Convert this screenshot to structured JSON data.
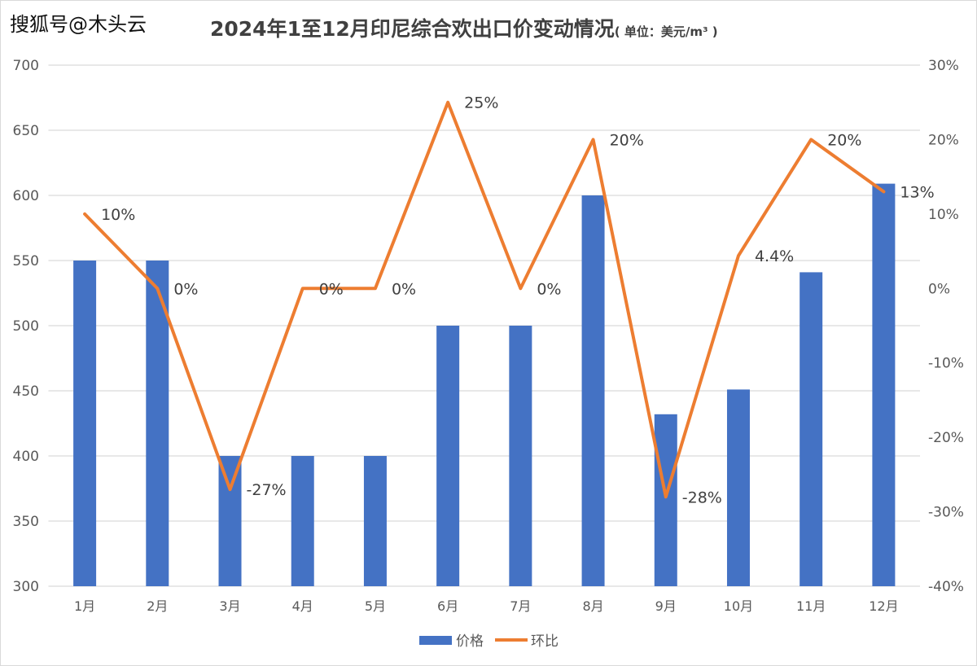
{
  "watermark": "搜狐号@木头云",
  "chart_data": {
    "type": "bar+line",
    "title": "2024年1至12月印尼综合欢出口价变动情况",
    "subtitle": "( 单位：美元/m³ )",
    "categories": [
      "1月",
      "2月",
      "3月",
      "4月",
      "5月",
      "6月",
      "7月",
      "8月",
      "9月",
      "10月",
      "11月",
      "12月"
    ],
    "series": [
      {
        "name": "价格",
        "type": "bar",
        "axis": "left",
        "color": "#4472C4",
        "values": [
          550,
          550,
          400,
          400,
          400,
          500,
          500,
          600,
          432,
          451,
          541,
          609
        ]
      },
      {
        "name": "环比",
        "type": "line",
        "axis": "right",
        "color": "#ED7D31",
        "values": [
          10,
          0,
          -27,
          0,
          0,
          25,
          0,
          20,
          -28,
          4.4,
          20,
          13
        ],
        "labels": [
          "10%",
          "0%",
          "-27%",
          "0%",
          "0%",
          "25%",
          "0%",
          "20%",
          "-28%",
          "4.4%",
          "20%",
          "13%"
        ]
      }
    ],
    "y_left": {
      "range": [
        300,
        700
      ],
      "ticks": [
        "300",
        "350",
        "400",
        "450",
        "500",
        "550",
        "600",
        "650",
        "700"
      ]
    },
    "y_right": {
      "range": [
        -40,
        30
      ],
      "ticks": [
        "-40%",
        "-30%",
        "-20%",
        "-10%",
        "0%",
        "10%",
        "20%",
        "30%"
      ]
    },
    "grid": true,
    "legend": "bottom"
  }
}
